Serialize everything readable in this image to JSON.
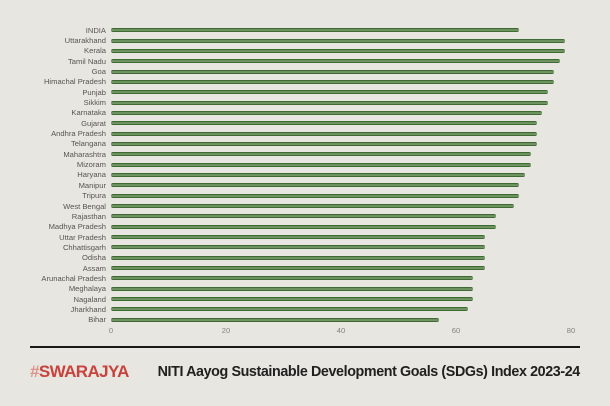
{
  "page": {
    "background_color": "#e8e6e1"
  },
  "chart_data": {
    "type": "bar",
    "orientation": "horizontal",
    "title": "",
    "xlabel": "",
    "ylabel": "",
    "xlim": [
      0,
      80
    ],
    "x_ticks": [
      "0",
      "20",
      "40",
      "60",
      "80"
    ],
    "grid": false,
    "legend": "none",
    "bar_color": "#4a713c",
    "categories": [
      "INDIA",
      "Uttarakhand",
      "Kerala",
      "Tamil Nadu",
      "Goa",
      "Himachal Pradesh",
      "Punjab",
      "Sikkim",
      "Karnataka",
      "Gujarat",
      "Andhra Pradesh",
      "Telangana",
      "Maharashtra",
      "Mizoram",
      "Haryana",
      "Manipur",
      "Tripura",
      "West Bengal",
      "Rajasthan",
      "Madhya Pradesh",
      "Uttar Pradesh",
      "Chhattisgarh",
      "Odisha",
      "Assam",
      "Arunachal Pradesh",
      "Meghalaya",
      "Nagaland",
      "Jharkhand",
      "Bihar"
    ],
    "values": [
      71,
      79,
      79,
      78,
      77,
      77,
      76,
      76,
      75,
      74,
      74,
      74,
      73,
      73,
      72,
      71,
      71,
      70,
      67,
      67,
      65,
      65,
      65,
      65,
      63,
      63,
      63,
      62,
      57
    ]
  },
  "footer": {
    "brand_hash": "#",
    "brand_name": "SWARAJYA",
    "brand_color": "#c8433c",
    "title": "NITI Aayog Sustainable Development Goals (SDGs) Index 2023-24"
  }
}
